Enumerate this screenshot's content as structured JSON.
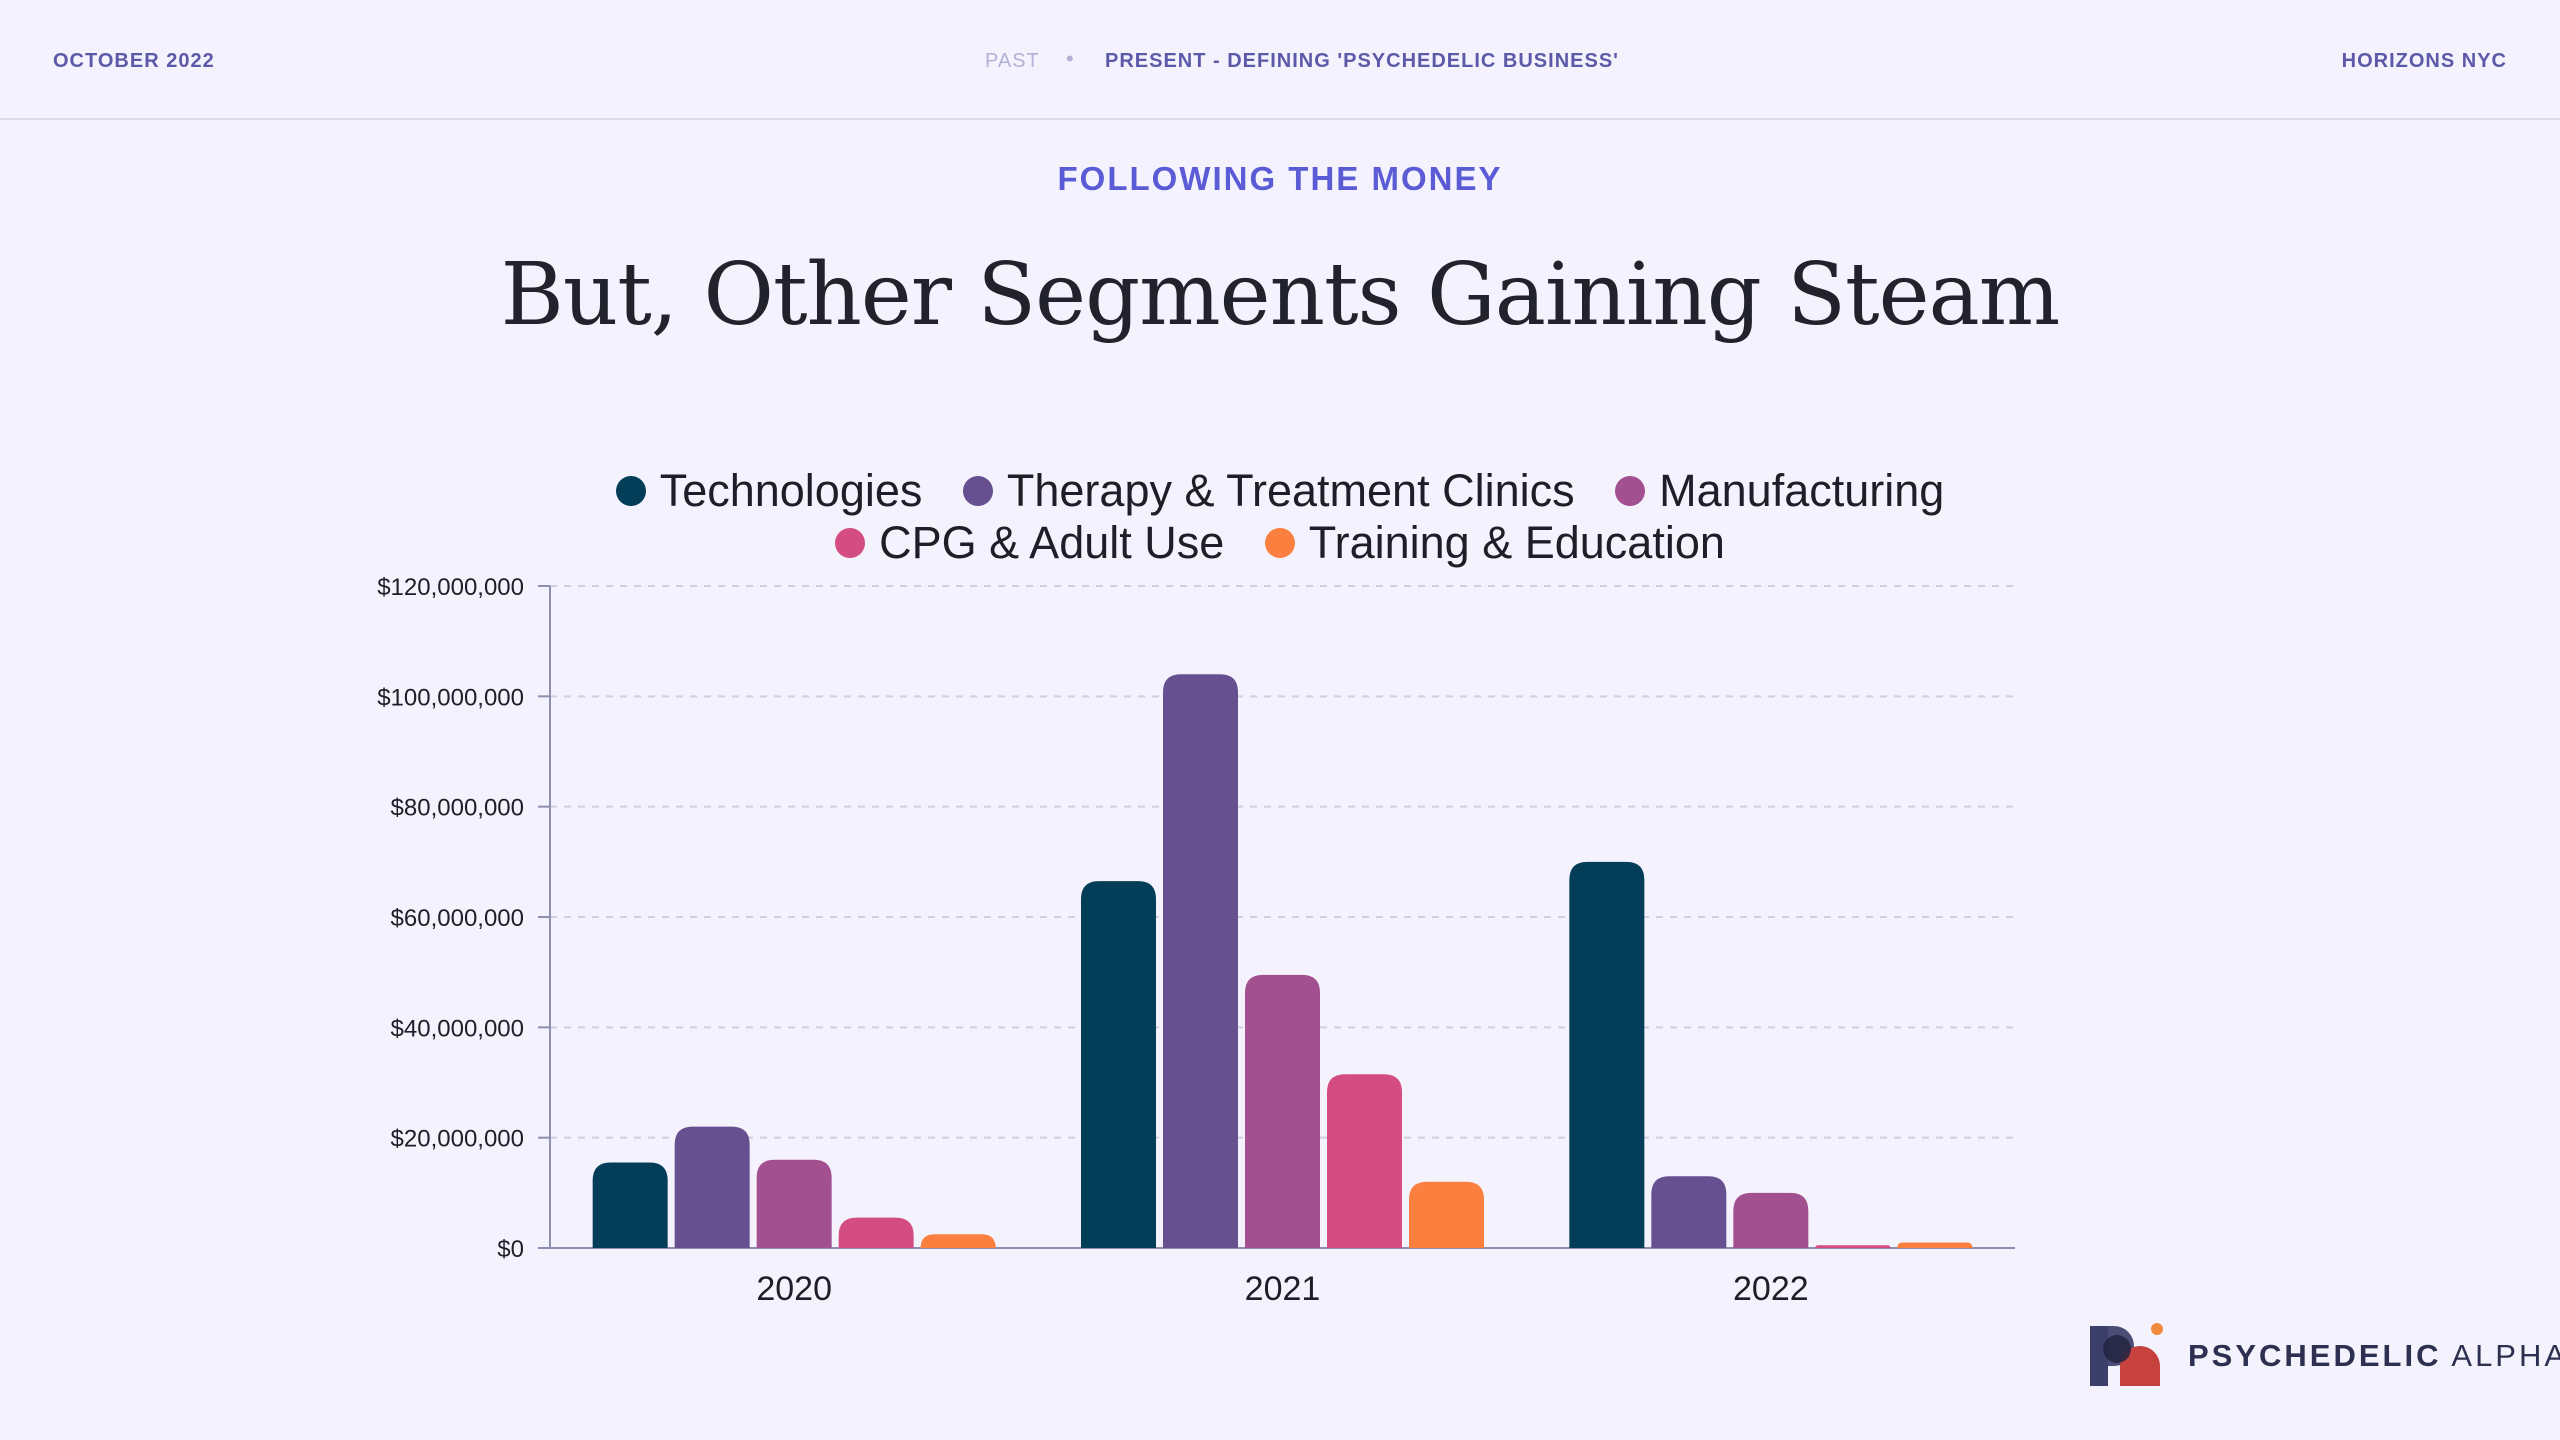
{
  "header": {
    "date": "OCTOBER 2022",
    "nav_past": "PAST",
    "nav_separator": "•",
    "nav_present": "PRESENT - DEFINING 'PSYCHEDELIC BUSINESS'",
    "event": "HORIZONS NYC"
  },
  "slide": {
    "section": "FOLLOWING THE MONEY",
    "title": "But, Other Segments Gaining Steam"
  },
  "brand": {
    "name_bold": "PSYCHEDELIC",
    "name_light": "ALPHA"
  },
  "chart_data": {
    "type": "bar",
    "title": "",
    "xlabel": "",
    "ylabel": "",
    "categories": [
      "2020",
      "2021",
      "2022"
    ],
    "ylim": [
      0,
      120000000
    ],
    "yticks": [
      0,
      20000000,
      40000000,
      60000000,
      80000000,
      100000000,
      120000000
    ],
    "ytick_labels": [
      "$0",
      "$20,000,000",
      "$40,000,000",
      "$60,000,000",
      "$80,000,000",
      "$100,000,000",
      "$120,000,000"
    ],
    "grid": true,
    "legend_position": "top",
    "series": [
      {
        "name": "Technologies",
        "color": "#033d58",
        "values": [
          15500000,
          66500000,
          70000000
        ]
      },
      {
        "name": "Therapy & Treatment Clinics",
        "color": "#66508f",
        "values": [
          22000000,
          104000000,
          13000000
        ]
      },
      {
        "name": "Manufacturing",
        "color": "#a2508f",
        "values": [
          16000000,
          49500000,
          10000000
        ]
      },
      {
        "name": "CPG & Adult Use",
        "color": "#d44d80",
        "values": [
          5500000,
          31500000,
          500000
        ]
      },
      {
        "name": "Training & Education",
        "color": "#fb7f3e",
        "values": [
          2500000,
          12000000,
          1000000
        ]
      }
    ]
  }
}
